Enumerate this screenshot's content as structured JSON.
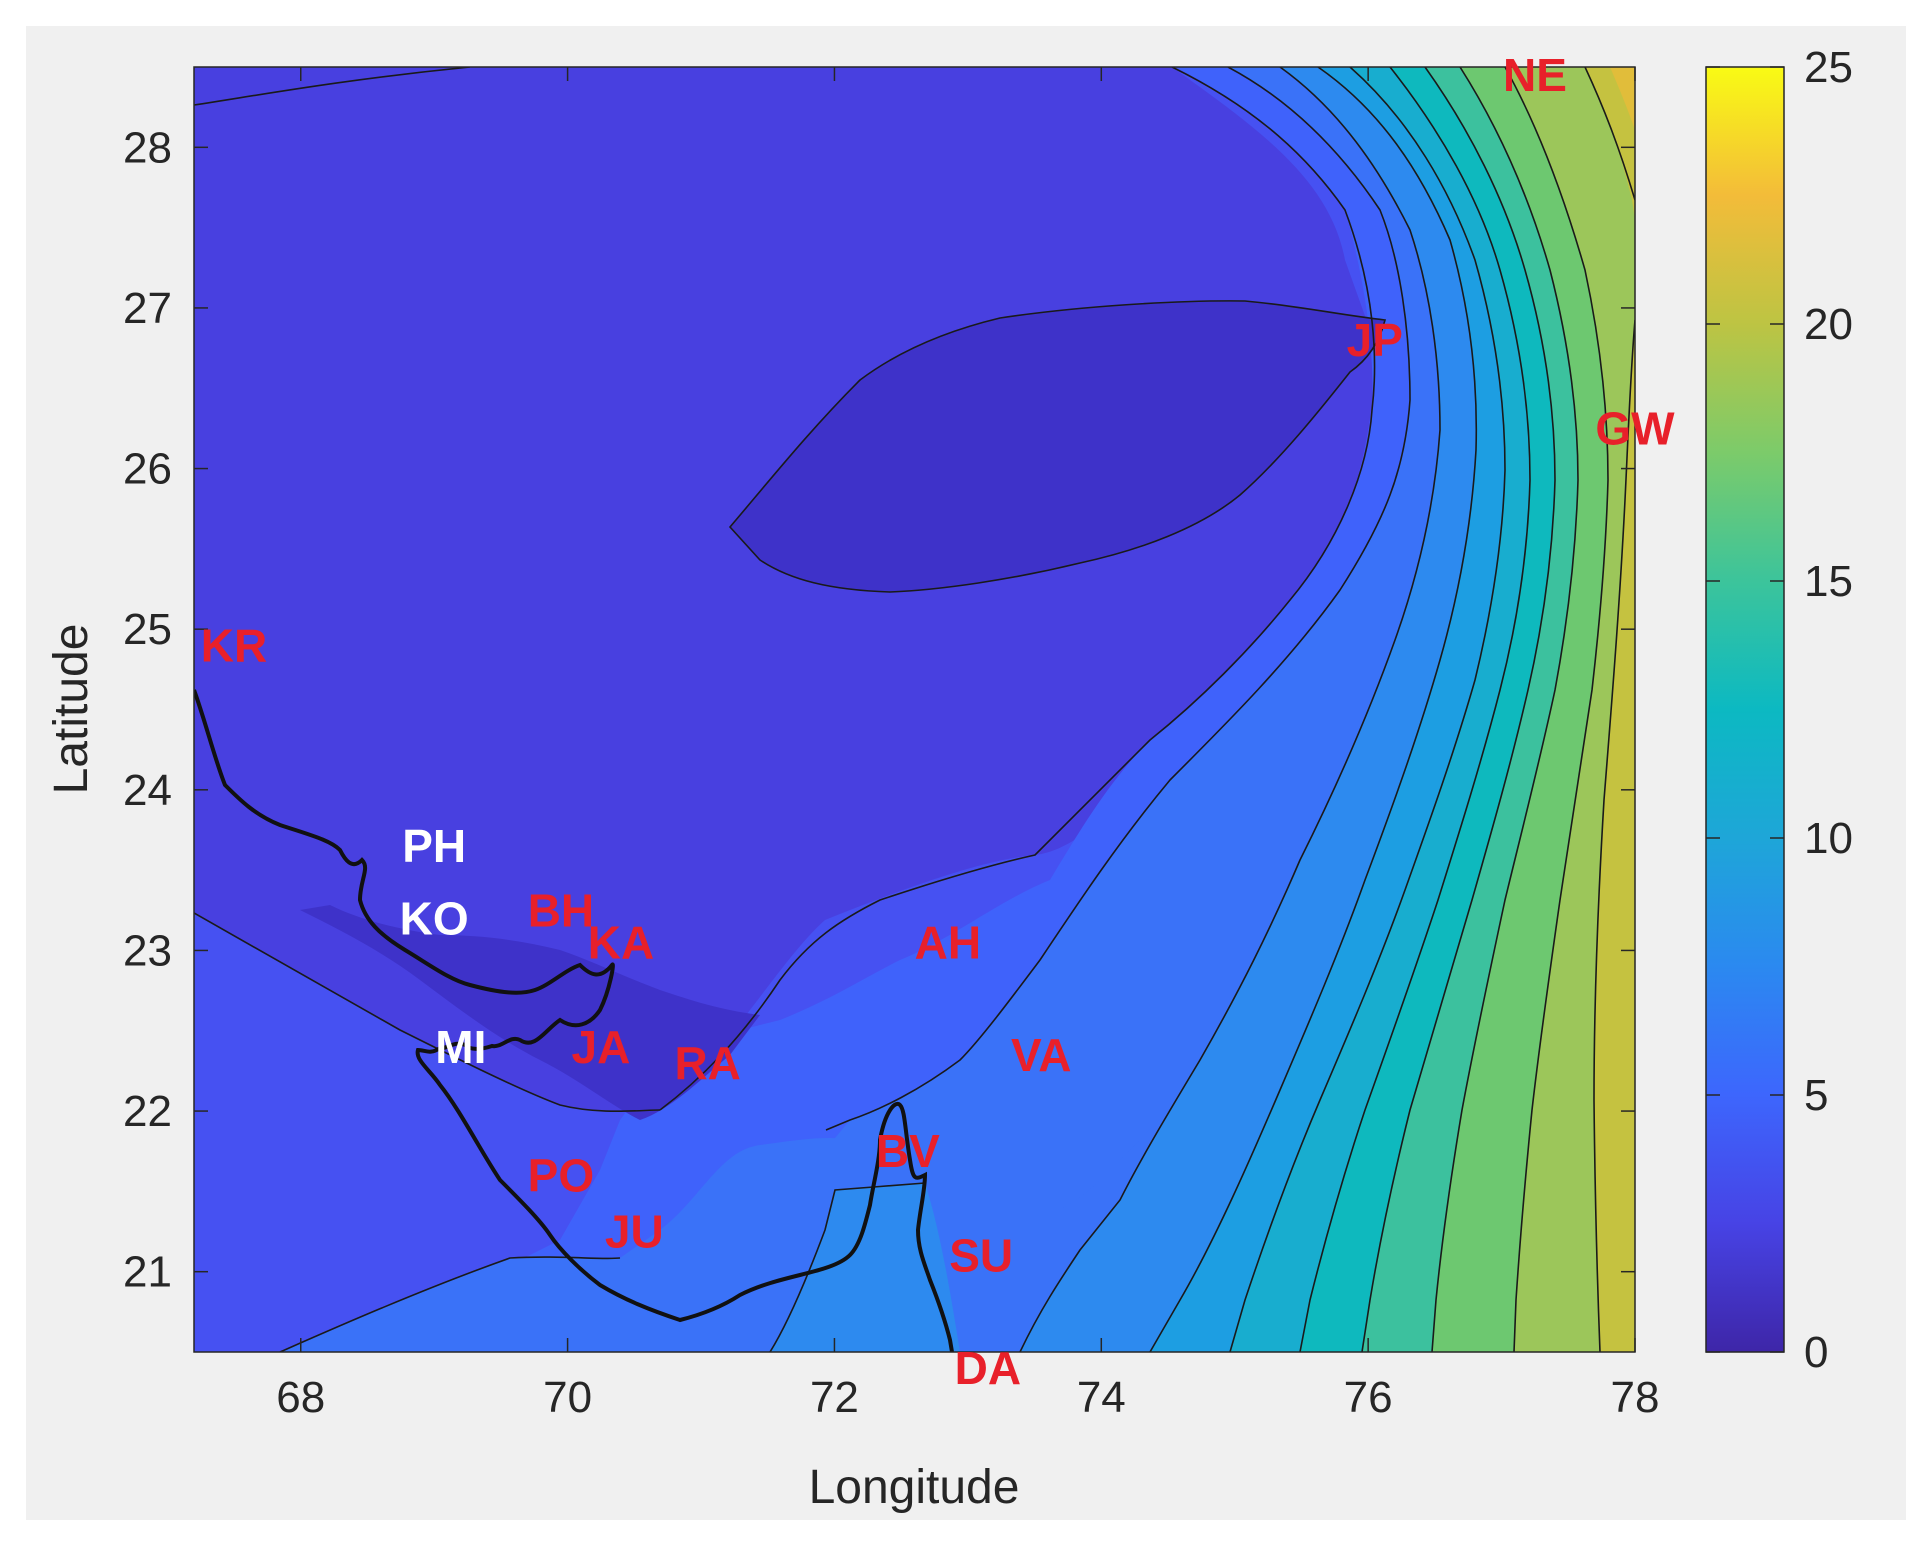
{
  "chart_data": {
    "type": "contour",
    "title": "",
    "xlabel": "Longitude",
    "ylabel": "Latitude",
    "xlim": [
      67.2,
      78
    ],
    "ylim": [
      20.5,
      28.5
    ],
    "xticks": [
      "68",
      "70",
      "72",
      "74",
      "76",
      "78"
    ],
    "yticks": [
      "21",
      "22",
      "23",
      "24",
      "25",
      "26",
      "27",
      "28"
    ],
    "colorbar": {
      "min": 0,
      "max": 25,
      "ticks": [
        "0",
        "5",
        "10",
        "15",
        "20",
        "25"
      ],
      "colormap": "parula"
    },
    "contour_levels": [
      0,
      1.67,
      3.33,
      5,
      6.67,
      8.33,
      10,
      11.67,
      13.33,
      15,
      16.67,
      18.33,
      20,
      21.67,
      23.33,
      25
    ],
    "sites": [
      {
        "label": "KR",
        "lon": 67.5,
        "lat": 24.9,
        "color": "#e8202a"
      },
      {
        "label": "PH",
        "lon": 69.0,
        "lat": 23.65,
        "color": "#ffffff"
      },
      {
        "label": "KO",
        "lon": 69.0,
        "lat": 23.2,
        "color": "#ffffff"
      },
      {
        "label": "BH",
        "lon": 69.95,
        "lat": 23.25,
        "color": "#e8202a"
      },
      {
        "label": "KA",
        "lon": 70.4,
        "lat": 23.05,
        "color": "#e8202a"
      },
      {
        "label": "MI",
        "lon": 69.2,
        "lat": 22.4,
        "color": "#ffffff"
      },
      {
        "label": "JA",
        "lon": 70.25,
        "lat": 22.4,
        "color": "#e8202a"
      },
      {
        "label": "RA",
        "lon": 71.05,
        "lat": 22.3,
        "color": "#e8202a"
      },
      {
        "label": "PO",
        "lon": 69.95,
        "lat": 21.6,
        "color": "#e8202a"
      },
      {
        "label": "JU",
        "lon": 70.5,
        "lat": 21.25,
        "color": "#e8202a"
      },
      {
        "label": "AH",
        "lon": 72.85,
        "lat": 23.05,
        "color": "#e8202a"
      },
      {
        "label": "VA",
        "lon": 73.55,
        "lat": 22.35,
        "color": "#e8202a"
      },
      {
        "label": "BV",
        "lon": 72.55,
        "lat": 21.75,
        "color": "#e8202a"
      },
      {
        "label": "SU",
        "lon": 73.1,
        "lat": 21.1,
        "color": "#e8202a"
      },
      {
        "label": "DA",
        "lon": 73.15,
        "lat": 20.4,
        "color": "#e8202a"
      },
      {
        "label": "JP",
        "lon": 76.05,
        "lat": 26.8,
        "color": "#e8202a"
      },
      {
        "label": "NE",
        "lon": 77.25,
        "lat": 28.45,
        "color": "#e8202a"
      },
      {
        "label": "GW",
        "lon": 78.0,
        "lat": 26.25,
        "color": "#e8202a"
      }
    ]
  }
}
